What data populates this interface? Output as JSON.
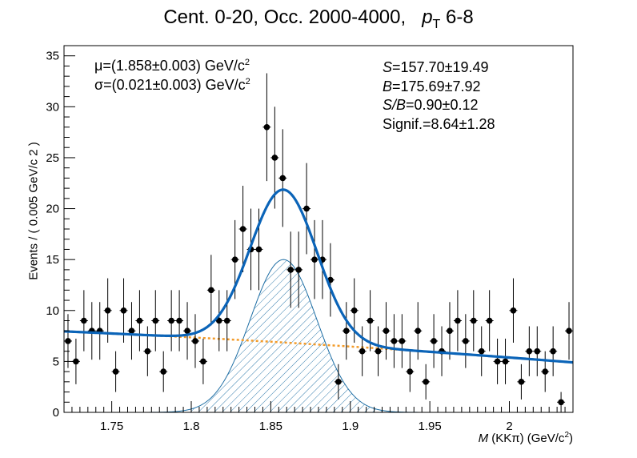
{
  "title": {
    "main": "Cent. 0-20, Occ. 2000-4000,",
    "pt_symbol": "p",
    "pt_sub": "T",
    "pt_range": "6-8"
  },
  "axes": {
    "ylabel": "Events / ( 0.005 GeV/c  2 )",
    "xlabel_var": "M",
    "xlabel_rest": " (KKπ) (GeV/c",
    "xlabel_sup": "2",
    "xlabel_end": ")"
  },
  "annotations": {
    "mu": "μ=(1.858±0.003) GeV/c",
    "mu_sup": "2",
    "sigma": "σ=(0.021±0.003) GeV/c",
    "sigma_sup": "2",
    "S_sym": "S",
    "S_val": "=157.70±19.49",
    "B_sym": "B",
    "B_val": "=175.69±7.92",
    "SB_sym": "S/B",
    "SB_val": "=0.90±0.12",
    "signif": "Signif.=8.64±1.28"
  },
  "chart_data": {
    "type": "scatter",
    "xlim": [
      1.72,
      2.04
    ],
    "ylim": [
      0,
      36
    ],
    "xticks": [
      "1.75",
      "1.8",
      "1.85",
      "1.9",
      "1.95",
      "2"
    ],
    "xtick_values": [
      1.75,
      1.8,
      1.85,
      1.9,
      1.95,
      2.0
    ],
    "yticks": [
      "0",
      "5",
      "10",
      "15",
      "20",
      "25",
      "30",
      "35"
    ],
    "ytick_values": [
      0,
      5,
      10,
      15,
      20,
      25,
      30,
      35
    ],
    "bin_width": 0.005,
    "x": [
      1.7225,
      1.7275,
      1.7325,
      1.7375,
      1.7425,
      1.7475,
      1.7525,
      1.7575,
      1.7625,
      1.7675,
      1.7725,
      1.7775,
      1.7825,
      1.7875,
      1.7925,
      1.7975,
      1.8025,
      1.8075,
      1.8125,
      1.8175,
      1.8225,
      1.8275,
      1.8325,
      1.8375,
      1.8425,
      1.8475,
      1.8525,
      1.8575,
      1.8625,
      1.8675,
      1.8725,
      1.8775,
      1.8825,
      1.8875,
      1.8925,
      1.8975,
      1.9025,
      1.9075,
      1.9125,
      1.9175,
      1.9225,
      1.9275,
      1.9325,
      1.9375,
      1.9425,
      1.9475,
      1.9525,
      1.9575,
      1.9625,
      1.9675,
      1.9725,
      1.9775,
      1.9825,
      1.9875,
      1.9925,
      1.9975,
      2.0025,
      2.0075,
      2.0125,
      2.0175,
      2.0225,
      2.0275,
      2.0325,
      2.0375
    ],
    "y": [
      7,
      5,
      9,
      8,
      8,
      10,
      4,
      10,
      8,
      9,
      6,
      9,
      4,
      9,
      9,
      8,
      7,
      5,
      12,
      9,
      9,
      15,
      18,
      16,
      16,
      28,
      25,
      23,
      14,
      14,
      20,
      15,
      15,
      13,
      3,
      8,
      10,
      6,
      9,
      6,
      8,
      7,
      7,
      4,
      8,
      3,
      7,
      6,
      8,
      9,
      7,
      9,
      6,
      9,
      5,
      5,
      10,
      3,
      6,
      6,
      4,
      6,
      1,
      8
    ],
    "series": [
      {
        "name": "total fit",
        "color": "#0b64b8"
      },
      {
        "name": "background",
        "color": "#f39c2b"
      },
      {
        "name": "signal",
        "color": "#1f6fa5"
      }
    ],
    "fit": {
      "mu": 1.858,
      "sigma": 0.021,
      "amplitude": 15.0,
      "bkg_a": 7.95,
      "bkg_b": -6.65,
      "bkg_c": -9.0,
      "bkg_x0": 1.72
    },
    "grid": false,
    "marker_color": "#000000"
  }
}
